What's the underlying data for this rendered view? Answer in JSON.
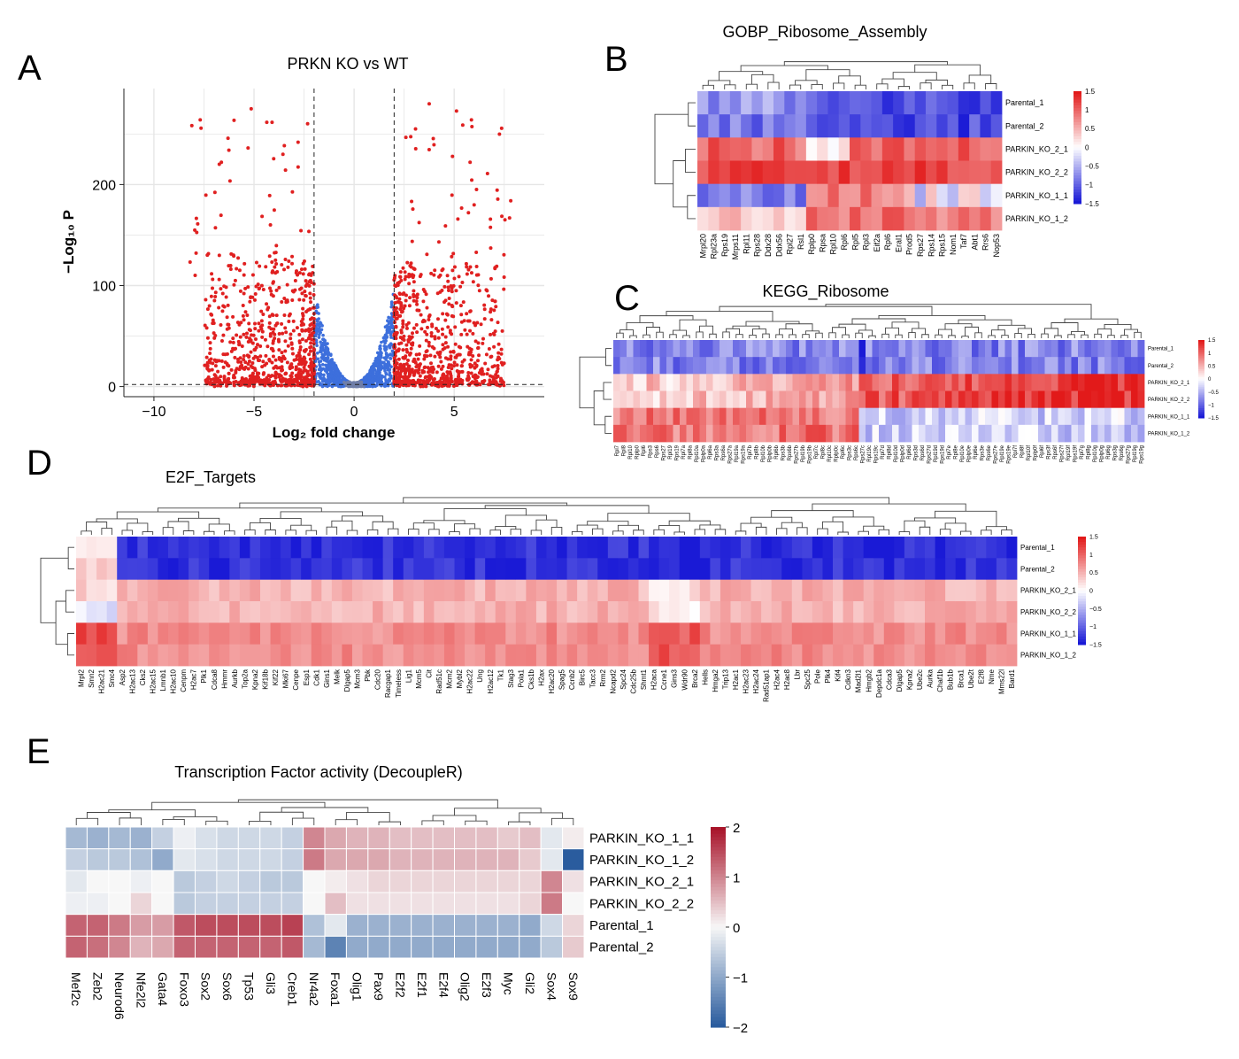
{
  "colors": {
    "volcano_up": "#e02020",
    "volcano_ns": "#3d6fdc",
    "volcano_small": "#6f7ea8",
    "heat_low": "#1a1ad6",
    "heat_mid": "#ffffff",
    "heat_high": "#e21a1a",
    "tf_low": "#2a5c9e",
    "tf_mid": "#f7f7f7",
    "tf_high": "#a8142a"
  },
  "panels": {
    "A": "A",
    "B": "B",
    "C": "C",
    "D": "D",
    "E": "E"
  },
  "chart_data": [
    {
      "id": "A",
      "type": "scatter",
      "title": "PRKN KO vs WT",
      "xlabel": "Log₂ fold change",
      "ylabel": "−Log₁₀ P",
      "xlim": [
        -11.5,
        9.5
      ],
      "ylim": [
        -10,
        295
      ],
      "xticks": [
        -10,
        -5,
        0,
        5
      ],
      "yticks": [
        0,
        100,
        200
      ],
      "fc_cutoff": 2,
      "p_cutoff": 2,
      "grid": true,
      "legend": "none",
      "points_described": "approx. 1800 red points with |log2FC| > 2, approx. 900 blue points with |log2FC| <= 2 (V-shaped cloud)"
    },
    {
      "id": "B",
      "type": "heatmap",
      "title": "GOBP_Ribosome_Assembly",
      "rows": [
        "Parental_1",
        "Parental_2",
        "PARKIN_KO_2_1",
        "PARKIN_KO_2_2",
        "PARKIN_KO_1_1",
        "PARKIN_KO_1_2"
      ],
      "columns": [
        "Mrpl20",
        "Rpl23a",
        "Rps19",
        "Mrps11",
        "Rpl11",
        "Rps28",
        "Ddx28",
        "Ddx56",
        "Rpl27",
        "Rsl1",
        "Rplp0",
        "Rpsa",
        "Rpl10",
        "Rpl6",
        "Rpl5",
        "Rpl3",
        "Eif2a",
        "Rpl6",
        "Eral1",
        "Prod5",
        "Rps27",
        "Rps14",
        "Rps15",
        "Nom1",
        "Taf7",
        "Abt1",
        "Rrs6",
        "Nop53"
      ],
      "scale_ticks": [
        "1.5",
        "1",
        "0.5",
        "0",
        "−0.5",
        "−1",
        "−1.5"
      ],
      "scale_range": [
        -1.5,
        1.5
      ]
    },
    {
      "id": "C",
      "type": "heatmap",
      "title": "KEGG_Ribosome",
      "rows": [
        "Parental_1",
        "Parental_2",
        "PARKIN_KO_2_1",
        "PARKIN_KO_2_2",
        "PARKIN_KO_1_1",
        "PARKIN_KO_1_2"
      ],
      "n_columns": 80,
      "column_label_example": [
        "Rpl7",
        "Rpl8",
        "Rpl10",
        "Rplp0",
        "Rpl6",
        "Rps3",
        "Rps6",
        "Rps27",
        "Rpl19",
        "Rps19"
      ],
      "scale_ticks": [
        "1.5",
        "1",
        "0.5",
        "0",
        "−0.5",
        "−1",
        "−1.5"
      ],
      "scale_range": [
        -1.5,
        1.5
      ]
    },
    {
      "id": "D",
      "type": "heatmap",
      "title": "E2F_Targets",
      "rows": [
        "Parental_1",
        "Parental_2",
        "PARKIN_KO_2_1",
        "PARKIN_KO_2_2",
        "PARKIN_KO_1_1",
        "PARKIN_KO_1_2"
      ],
      "column_labels": [
        "Mrpl2",
        "Smn2",
        "H2ac21",
        "Smc4",
        "Asp2",
        "H2ac13",
        "Cks2",
        "H2ac15",
        "Lmnb1",
        "H2ac10",
        "Cenpm",
        "H2ac7",
        "Plk1",
        "Cdca8",
        "Hmmr",
        "Aurkb",
        "Top2a",
        "Kpna2",
        "Kif18b",
        "Kif22",
        "Mki67",
        "Cenpe",
        "Esp1",
        "Cdk1",
        "Gins1",
        "Melk",
        "Dlgap5",
        "Mcm3",
        "Pbk",
        "Cdc20",
        "Racgap1",
        "Timeless",
        "Lig1",
        "Mcm5",
        "Cit",
        "Rad51c",
        "Mcm2",
        "Mybl2",
        "H2ac22",
        "Ung",
        "H2ac12",
        "Tk1",
        "Stag3",
        "Pola1",
        "Cks1b",
        "H2ax",
        "H2ac20",
        "Spag5",
        "Ccnb2",
        "Birc5",
        "Tacc3",
        "Rrm2",
        "Ncapd2",
        "Spc24",
        "Cdc25b",
        "Shmt1",
        "H2aca",
        "Ccne1",
        "Gins3",
        "Wdr90",
        "Brca2",
        "Hells",
        "Hmga2",
        "Trip13",
        "H2ac1",
        "H2ac23",
        "H2ac24",
        "Rad51ap1",
        "H2ac4",
        "H2ac8",
        "Lbr",
        "Spc25",
        "Pole",
        "Plk4",
        "Kif4",
        "Cdkn3",
        "Mad2l1",
        "Hmgb2",
        "Depdc1a",
        "Cdca3",
        "Dlgap5",
        "Kpna2",
        "Ube2c",
        "Aurka",
        "Chaf1b",
        "Bub1b",
        "Brca1",
        "Ube2t",
        "E2f8",
        "Nme",
        "Mms22l",
        "Bard1"
      ],
      "scale_ticks": [
        "1.5",
        "1",
        "0.5",
        "0",
        "−0.5",
        "−1",
        "−1.5"
      ],
      "scale_range": [
        -1.5,
        1.5
      ]
    },
    {
      "id": "E",
      "type": "heatmap",
      "title": "Transcription Factor activity (DecoupleR)",
      "rows": [
        "PARKIN_KO_1_1",
        "PARKIN_KO_1_2",
        "PARKIN_KO_2_1",
        "PARKIN_KO_2_2",
        "Parental_1",
        "Parental_2"
      ],
      "columns": [
        "Mef2c",
        "Zeb2",
        "Neurod6",
        "Nfe2l2",
        "Gata4",
        "Foxo3",
        "Sox2",
        "Sox6",
        "Tp53",
        "Gli3",
        "Creb1",
        "Nr4a2",
        "Foxa1",
        "Olig1",
        "Pax9",
        "E2f2",
        "E2f1",
        "E2f4",
        "Olig2",
        "E2f3",
        "Myc",
        "Gli2",
        "Sox4",
        "Sox9"
      ],
      "scale_ticks": [
        "2",
        "1",
        "0",
        "−1",
        "−2"
      ],
      "scale_range": [
        -2,
        2
      ],
      "values": [
        [
          -0.8,
          -0.9,
          -0.8,
          -0.9,
          -0.5,
          -0.1,
          -0.3,
          -0.4,
          -0.4,
          -0.4,
          -0.5,
          1.0,
          0.7,
          0.6,
          0.6,
          0.5,
          0.5,
          0.5,
          0.5,
          0.5,
          0.4,
          0.5,
          -0.2,
          0.1
        ],
        [
          -0.5,
          -0.6,
          -0.6,
          -0.7,
          -1.0,
          -0.2,
          -0.3,
          -0.4,
          -0.4,
          -0.4,
          -0.5,
          1.1,
          0.7,
          0.7,
          0.7,
          0.6,
          0.6,
          0.6,
          0.6,
          0.6,
          0.6,
          0.4,
          -0.2,
          -2.0
        ],
        [
          -0.2,
          0.0,
          0.0,
          -0.1,
          0.0,
          -0.6,
          -0.5,
          -0.4,
          -0.5,
          -0.6,
          -0.6,
          0.0,
          0.1,
          0.2,
          0.3,
          0.3,
          0.3,
          0.3,
          0.3,
          0.3,
          0.3,
          0.3,
          1.0,
          0.2
        ],
        [
          -0.1,
          -0.1,
          0.0,
          0.3,
          0.0,
          -0.6,
          -0.5,
          -0.5,
          -0.5,
          -0.5,
          -0.5,
          0.0,
          0.5,
          0.2,
          0.2,
          0.2,
          0.2,
          0.2,
          0.2,
          0.2,
          0.2,
          0.3,
          1.1,
          0.0
        ],
        [
          1.3,
          1.3,
          1.1,
          0.8,
          0.8,
          1.4,
          1.5,
          1.5,
          1.5,
          1.5,
          1.6,
          -0.7,
          -0.2,
          -0.9,
          -0.9,
          -0.9,
          -0.9,
          -0.9,
          -0.9,
          -0.9,
          -0.9,
          -1.0,
          -0.4,
          0.3
        ],
        [
          1.3,
          1.2,
          1.0,
          0.6,
          0.7,
          1.3,
          1.3,
          1.3,
          1.3,
          1.3,
          1.4,
          -0.8,
          -1.5,
          -1.0,
          -1.0,
          -1.0,
          -1.0,
          -1.0,
          -1.0,
          -1.0,
          -1.0,
          -1.0,
          -0.6,
          0.4
        ]
      ]
    }
  ]
}
